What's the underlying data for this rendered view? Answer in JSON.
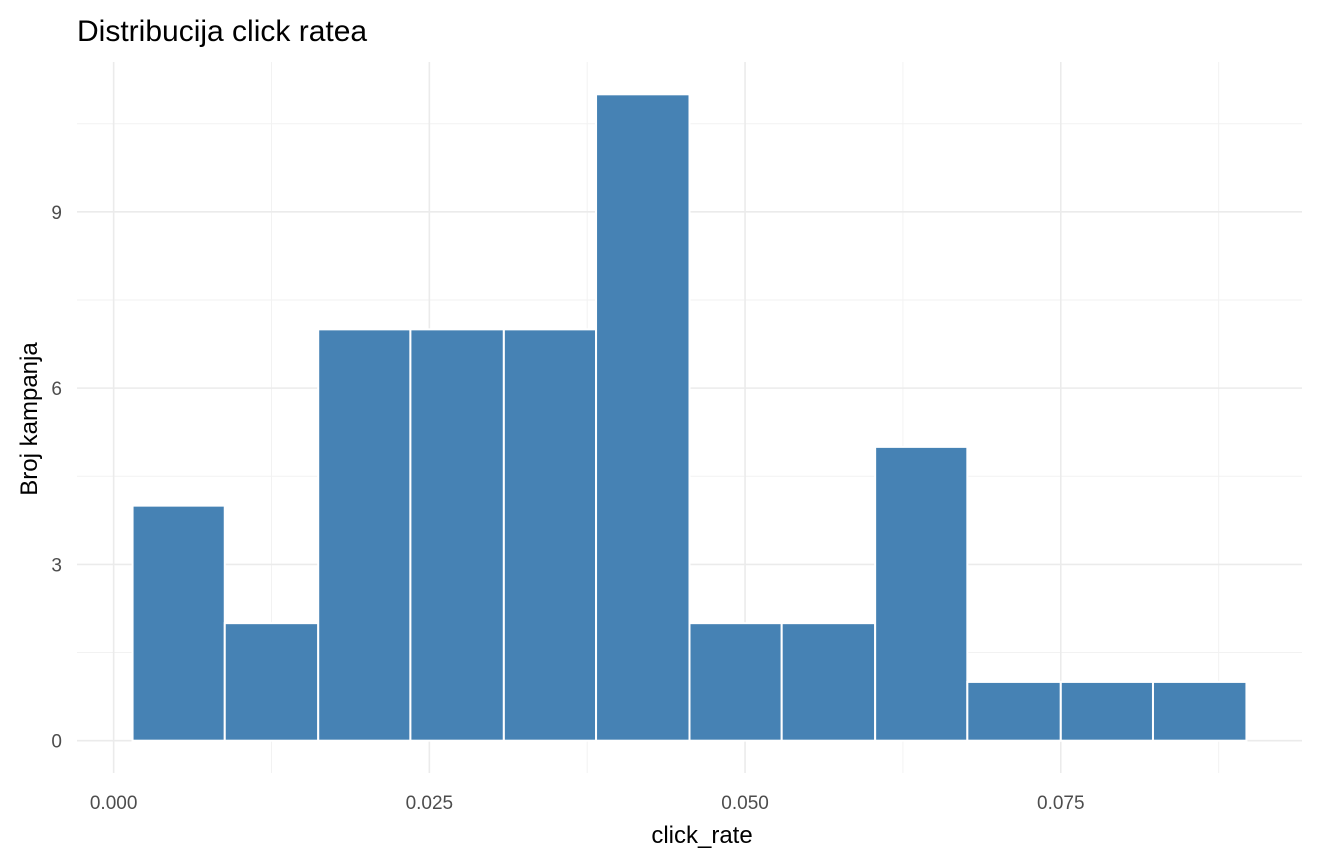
{
  "chart_data": {
    "type": "bar",
    "title": "Distribucija click ratea",
    "xlabel": "click_rate",
    "ylabel": "Broj kampanja",
    "bar_color": "#4682b4",
    "bar_outline_color": "#ffffff",
    "bins": [
      {
        "x_start": 0.0015,
        "x_end": 0.0088,
        "count": 4
      },
      {
        "x_start": 0.0088,
        "x_end": 0.0162,
        "count": 2
      },
      {
        "x_start": 0.0162,
        "x_end": 0.0235,
        "count": 7
      },
      {
        "x_start": 0.0235,
        "x_end": 0.0309,
        "count": 7
      },
      {
        "x_start": 0.0309,
        "x_end": 0.0382,
        "count": 7
      },
      {
        "x_start": 0.0382,
        "x_end": 0.0456,
        "count": 11
      },
      {
        "x_start": 0.0456,
        "x_end": 0.0529,
        "count": 2
      },
      {
        "x_start": 0.0529,
        "x_end": 0.0603,
        "count": 2
      },
      {
        "x_start": 0.0603,
        "x_end": 0.0676,
        "count": 5
      },
      {
        "x_start": 0.0676,
        "x_end": 0.075,
        "count": 1
      },
      {
        "x_start": 0.075,
        "x_end": 0.0823,
        "count": 1
      },
      {
        "x_start": 0.0823,
        "x_end": 0.0897,
        "count": 1
      }
    ],
    "xlim": [
      -0.0029,
      0.0941
    ],
    "ylim": [
      -0.55,
      11.55
    ],
    "x_ticks": [
      {
        "value": 0.0,
        "label": "0.000"
      },
      {
        "value": 0.025,
        "label": "0.025"
      },
      {
        "value": 0.05,
        "label": "0.050"
      },
      {
        "value": 0.075,
        "label": "0.075"
      }
    ],
    "y_ticks": [
      {
        "value": 0,
        "label": "0"
      },
      {
        "value": 3,
        "label": "3"
      },
      {
        "value": 6,
        "label": "6"
      },
      {
        "value": 9,
        "label": "9"
      }
    ],
    "x_minor_ticks": [
      0.0125,
      0.0375,
      0.0625,
      0.0875
    ],
    "y_minor_ticks": [
      1.5,
      4.5,
      7.5,
      10.5
    ],
    "grid": true,
    "legend": "none"
  }
}
